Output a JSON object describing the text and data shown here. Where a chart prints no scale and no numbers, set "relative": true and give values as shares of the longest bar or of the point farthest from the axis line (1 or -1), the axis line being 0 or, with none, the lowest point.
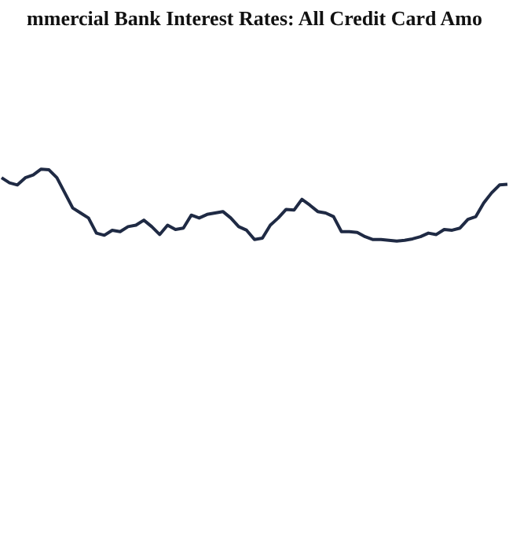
{
  "chart_data": {
    "type": "line",
    "title": "mmercial Bank Interest Rates: All Credit Card Amo",
    "relative": true,
    "categories": [
      null,
      null,
      null,
      null,
      null,
      null,
      null,
      null,
      null,
      null,
      null,
      null,
      null,
      null,
      null,
      null,
      null,
      null,
      null,
      null,
      null,
      null,
      null,
      null,
      null,
      null,
      null,
      null,
      null,
      null,
      null,
      null,
      null,
      null,
      null,
      null,
      null,
      null,
      null,
      null,
      null,
      null,
      null,
      null,
      null,
      null,
      null,
      null,
      null,
      null,
      null,
      null,
      null,
      null,
      null,
      null,
      null,
      null,
      null,
      null,
      null,
      null,
      null,
      null,
      null
    ],
    "series": [
      {
        "color": "#1f2a44",
        "values": [
          0.88,
          0.81,
          0.78,
          0.88,
          0.92,
          1.0,
          0.99,
          0.88,
          0.67,
          0.46,
          0.39,
          0.32,
          0.11,
          0.08,
          0.15,
          0.13,
          0.2,
          0.22,
          0.29,
          0.2,
          0.09,
          0.22,
          0.16,
          0.18,
          0.36,
          0.32,
          0.37,
          0.39,
          0.41,
          0.32,
          0.2,
          0.15,
          0.02,
          0.04,
          0.22,
          0.32,
          0.44,
          0.43,
          0.58,
          0.5,
          0.41,
          0.39,
          0.34,
          0.13,
          0.13,
          0.12,
          0.06,
          0.02,
          0.02,
          0.01,
          0,
          0.01,
          0.03,
          0.06,
          0.11,
          0.09,
          0.16,
          0.15,
          0.18,
          0.3,
          0.34,
          0.53,
          0.67,
          0.78,
          0.79
        ]
      }
    ]
  }
}
